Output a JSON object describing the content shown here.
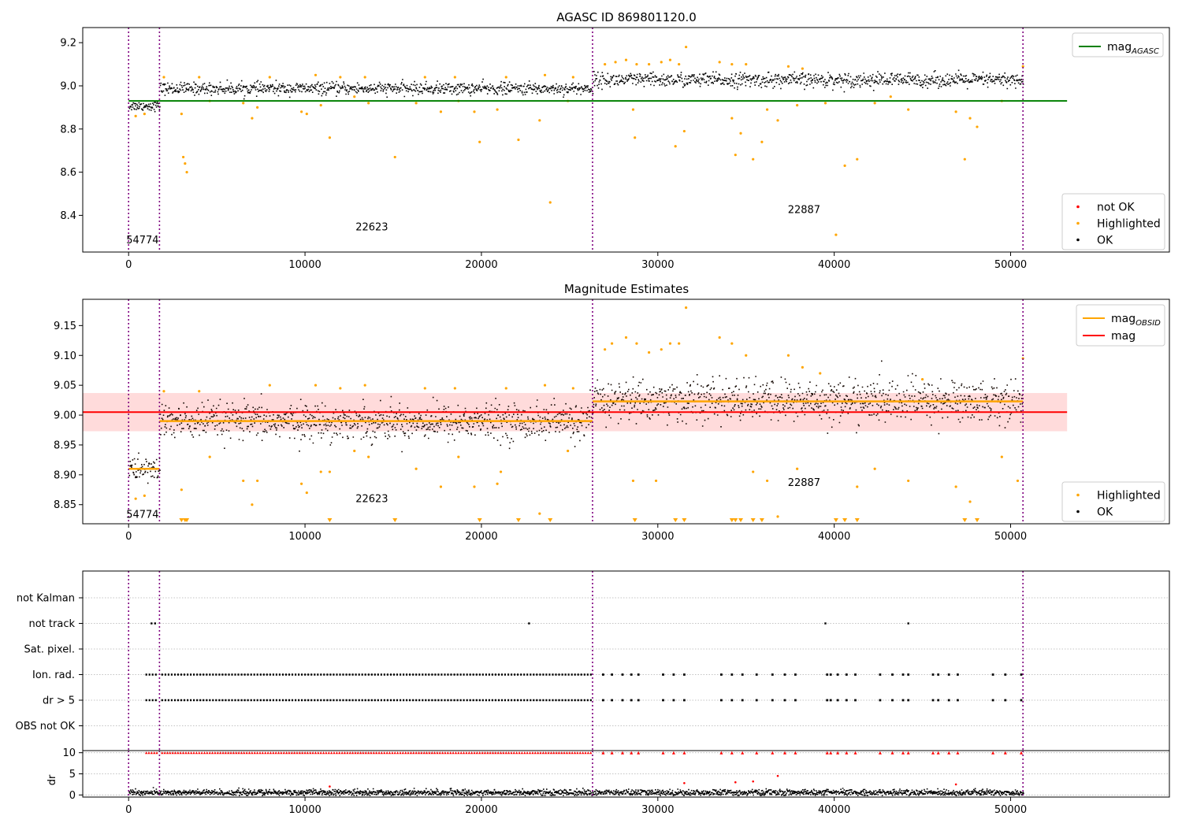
{
  "figure": {
    "title_top": "AGASC ID 869801120.0",
    "title_mid": "Magnitude Estimates"
  },
  "chart_data": [
    {
      "id": "top",
      "type": "scatter",
      "title": "AGASC ID 869801120.0",
      "xlim": [
        -2600,
        59000
      ],
      "ylim": [
        8.23,
        9.27
      ],
      "xticks": [
        0,
        10000,
        20000,
        30000,
        40000,
        50000
      ],
      "yticks": [
        8.4,
        8.6,
        8.8,
        9.0,
        9.2
      ],
      "ytick_decimals": 1,
      "grid": false,
      "legend_upper": {
        "placement": "top-right",
        "entries": [
          {
            "label": "mag",
            "sub": "AGASC",
            "color": "#008000",
            "kind": "line"
          }
        ]
      },
      "legend_lower": {
        "placement": "bottom-right",
        "entries": [
          {
            "label": "not OK",
            "color": "#ff0000",
            "kind": "dot"
          },
          {
            "label": "Highlighted",
            "color": "#ffa500",
            "kind": "dot"
          },
          {
            "label": "OK",
            "color": "#000000",
            "kind": "dot"
          }
        ]
      },
      "hline": {
        "y": 8.93,
        "x0": 0,
        "x1": 53200,
        "color": "#008000"
      },
      "obsid_boundaries": [
        0,
        1750,
        26300,
        50700
      ],
      "segments": [
        {
          "x0": 0,
          "x1": 1750,
          "center": 8.91,
          "spread": 0.02
        },
        {
          "x0": 1750,
          "x1": 26300,
          "center": 8.99,
          "spread": 0.025
        },
        {
          "x0": 26300,
          "x1": 50700,
          "center": 9.03,
          "spread": 0.03
        }
      ],
      "highlighted": [
        [
          400,
          8.86
        ],
        [
          900,
          8.87
        ],
        [
          3000,
          8.87
        ],
        [
          3100,
          8.67
        ],
        [
          3200,
          8.64
        ],
        [
          3300,
          8.6
        ],
        [
          4600,
          8.93
        ],
        [
          6500,
          8.92
        ],
        [
          7000,
          8.85
        ],
        [
          7300,
          8.9
        ],
        [
          9800,
          8.88
        ],
        [
          10100,
          8.87
        ],
        [
          10900,
          8.91
        ],
        [
          11400,
          8.76
        ],
        [
          12800,
          8.95
        ],
        [
          13600,
          8.92
        ],
        [
          15100,
          8.67
        ],
        [
          16300,
          8.92
        ],
        [
          17700,
          8.88
        ],
        [
          18700,
          8.93
        ],
        [
          19600,
          8.88
        ],
        [
          19900,
          8.74
        ],
        [
          20900,
          8.89
        ],
        [
          22100,
          8.75
        ],
        [
          23300,
          8.84
        ],
        [
          23900,
          8.46
        ],
        [
          24900,
          8.93
        ],
        [
          28600,
          8.89
        ],
        [
          28700,
          8.76
        ],
        [
          31000,
          8.72
        ],
        [
          31500,
          8.79
        ],
        [
          31600,
          9.18
        ],
        [
          34200,
          8.85
        ],
        [
          34400,
          8.68
        ],
        [
          34700,
          8.78
        ],
        [
          35400,
          8.66
        ],
        [
          35900,
          8.74
        ],
        [
          36200,
          8.89
        ],
        [
          36800,
          8.84
        ],
        [
          37900,
          8.91
        ],
        [
          39500,
          8.92
        ],
        [
          40100,
          8.31
        ],
        [
          40600,
          8.63
        ],
        [
          41300,
          8.66
        ],
        [
          42300,
          8.92
        ],
        [
          43200,
          8.95
        ],
        [
          44200,
          8.89
        ],
        [
          46900,
          8.88
        ],
        [
          47400,
          8.66
        ],
        [
          47700,
          8.85
        ],
        [
          48100,
          8.81
        ],
        [
          49500,
          8.93
        ],
        [
          50700,
          9.09
        ],
        [
          27000,
          9.1
        ],
        [
          27600,
          9.11
        ],
        [
          28200,
          9.12
        ],
        [
          28800,
          9.1
        ],
        [
          29500,
          9.1
        ],
        [
          30200,
          9.11
        ],
        [
          30700,
          9.12
        ],
        [
          31200,
          9.1
        ],
        [
          33500,
          9.11
        ],
        [
          34200,
          9.1
        ],
        [
          35000,
          9.1
        ],
        [
          37400,
          9.09
        ],
        [
          38200,
          9.08
        ],
        [
          2000,
          9.04
        ],
        [
          4000,
          9.04
        ],
        [
          8000,
          9.04
        ],
        [
          10600,
          9.05
        ],
        [
          12000,
          9.04
        ],
        [
          13400,
          9.04
        ],
        [
          16800,
          9.04
        ],
        [
          18500,
          9.04
        ],
        [
          21400,
          9.04
        ],
        [
          23600,
          9.05
        ],
        [
          25200,
          9.04
        ]
      ],
      "annotations": [
        {
          "text": "54774",
          "x": 0,
          "y": 8.27
        },
        {
          "text": "22623",
          "x": 13000,
          "y": 8.33
        },
        {
          "text": "22887",
          "x": 37500,
          "y": 8.41
        }
      ]
    },
    {
      "id": "mid",
      "type": "scatter",
      "title": "Magnitude Estimates",
      "xlim": [
        -2600,
        59000
      ],
      "ylim": [
        8.818,
        9.194
      ],
      "xticks": [
        0,
        10000,
        20000,
        30000,
        40000,
        50000
      ],
      "yticks": [
        8.85,
        8.9,
        8.95,
        9.0,
        9.05,
        9.1,
        9.15
      ],
      "ytick_decimals": 2,
      "grid": false,
      "legend_upper": {
        "placement": "top-right",
        "entries": [
          {
            "label": "mag",
            "sub": "OBSID",
            "color": "#ffa500",
            "kind": "line"
          },
          {
            "label": "mag",
            "sub": "",
            "color": "#ff0000",
            "kind": "line"
          }
        ]
      },
      "legend_lower": {
        "placement": "bottom-right",
        "entries": [
          {
            "label": "Highlighted",
            "color": "#ffa500",
            "kind": "dot"
          },
          {
            "label": "OK",
            "color": "#000000",
            "kind": "dot"
          }
        ]
      },
      "band": {
        "y0": 8.973,
        "y1": 9.037,
        "x0": -2600,
        "x1": 53200,
        "color": "#ffcccc"
      },
      "hline": {
        "y": 9.005,
        "x0": -2600,
        "x1": 53200,
        "color": "#ff0000"
      },
      "obsid_means": [
        {
          "x0": 0,
          "x1": 1750,
          "y": 8.91
        },
        {
          "x0": 1750,
          "x1": 26300,
          "y": 8.99
        },
        {
          "x0": 26300,
          "x1": 50700,
          "y": 9.023
        }
      ],
      "obsid_boundaries": [
        0,
        1750,
        26300,
        50700
      ],
      "segments": [
        {
          "x0": 0,
          "x1": 1750,
          "center": 8.91,
          "spread": 0.02
        },
        {
          "x0": 1750,
          "x1": 26300,
          "center": 8.99,
          "spread": 0.027
        },
        {
          "x0": 26300,
          "x1": 50700,
          "center": 9.025,
          "spread": 0.032
        }
      ],
      "highlighted": [
        [
          400,
          8.86
        ],
        [
          900,
          8.865
        ],
        [
          3000,
          8.875
        ],
        [
          4600,
          8.93
        ],
        [
          6500,
          8.89
        ],
        [
          7000,
          8.85
        ],
        [
          7300,
          8.89
        ],
        [
          9800,
          8.885
        ],
        [
          10100,
          8.87
        ],
        [
          10900,
          8.905
        ],
        [
          11400,
          8.905
        ],
        [
          12800,
          8.94
        ],
        [
          13600,
          8.93
        ],
        [
          16300,
          8.91
        ],
        [
          17700,
          8.88
        ],
        [
          18700,
          8.93
        ],
        [
          19600,
          8.88
        ],
        [
          20900,
          8.885
        ],
        [
          21100,
          8.905
        ],
        [
          23300,
          8.835
        ],
        [
          24900,
          8.94
        ],
        [
          28600,
          8.89
        ],
        [
          29900,
          8.89
        ],
        [
          35400,
          8.905
        ],
        [
          36200,
          8.89
        ],
        [
          36800,
          8.83
        ],
        [
          37900,
          8.91
        ],
        [
          41300,
          8.88
        ],
        [
          42300,
          8.91
        ],
        [
          44200,
          8.89
        ],
        [
          46900,
          8.88
        ],
        [
          47700,
          8.855
        ],
        [
          49500,
          8.93
        ],
        [
          50400,
          8.89
        ],
        [
          27000,
          9.11
        ],
        [
          27400,
          9.12
        ],
        [
          28200,
          9.13
        ],
        [
          28800,
          9.12
        ],
        [
          29500,
          9.105
        ],
        [
          30200,
          9.11
        ],
        [
          30700,
          9.12
        ],
        [
          31200,
          9.12
        ],
        [
          31600,
          9.18
        ],
        [
          33500,
          9.13
        ],
        [
          34200,
          9.12
        ],
        [
          35000,
          9.1
        ],
        [
          37400,
          9.1
        ],
        [
          38200,
          9.08
        ],
        [
          39200,
          9.07
        ],
        [
          45000,
          9.06
        ],
        [
          2000,
          9.04
        ],
        [
          4000,
          9.04
        ],
        [
          8000,
          9.05
        ],
        [
          10600,
          9.05
        ],
        [
          12000,
          9.045
        ],
        [
          13400,
          9.05
        ],
        [
          16800,
          9.045
        ],
        [
          18500,
          9.045
        ],
        [
          21400,
          9.045
        ],
        [
          23600,
          9.05
        ],
        [
          25200,
          9.045
        ],
        [
          50700,
          9.095
        ]
      ],
      "offscale_low": [
        3000,
        3200,
        3300,
        11400,
        15100,
        19900,
        22100,
        23900,
        28700,
        31000,
        31500,
        34200,
        34400,
        34700,
        35400,
        35900,
        40100,
        40600,
        41300,
        47400,
        48100
      ],
      "annotations": [
        {
          "text": "54774",
          "x": 0,
          "y": 8.828
        },
        {
          "text": "22623",
          "x": 13000,
          "y": 8.854
        },
        {
          "text": "22887",
          "x": 37500,
          "y": 8.881
        }
      ]
    },
    {
      "id": "flags",
      "type": "scatter",
      "xlim": [
        -2600,
        59000
      ],
      "grid": true,
      "obsid_boundaries": [
        0,
        1750,
        26300,
        50700
      ],
      "categories": [
        "not Kalman",
        "not track",
        "Sat. pixel.",
        "Ion. rad.",
        "dr > 5",
        "OBS not OK"
      ],
      "not_track_x": [
        1300,
        1500,
        22700,
        39500,
        44200
      ],
      "ion_rad_x_ranges": [
        [
          1000,
          1600
        ],
        [
          1900,
          26300
        ]
      ],
      "ion_rad_sparse_x": [
        26900,
        27400,
        28000,
        28500,
        28900,
        30300,
        30900,
        31500,
        33600,
        34200,
        34800,
        35600,
        36500,
        37200,
        37800,
        39600,
        39800,
        40200,
        40700,
        41200,
        42600,
        43300,
        43900,
        44200,
        45600,
        45900,
        46500,
        47000,
        49000,
        49700,
        50600
      ],
      "dr_over_5_x_ranges": [
        [
          1000,
          1600
        ],
        [
          1900,
          26300
        ]
      ],
      "dr_over_5_sparse_x": [
        26900,
        27400,
        28000,
        28500,
        28900,
        30300,
        30900,
        31500,
        33600,
        34200,
        34800,
        35600,
        36500,
        37200,
        37800,
        39600,
        39800,
        40200,
        40700,
        41200,
        42600,
        43300,
        43900,
        44200,
        45600,
        45900,
        46500,
        47000,
        49000,
        49700,
        50600
      ]
    },
    {
      "id": "dr",
      "type": "scatter",
      "ylabel": "dr",
      "xlim": [
        -2600,
        59000
      ],
      "ylim": [
        -0.5,
        10.5
      ],
      "xticks": [
        0,
        10000,
        20000,
        30000,
        40000,
        50000
      ],
      "yticks": [
        0,
        5,
        10
      ],
      "grid": true,
      "obsid_boundaries": [
        0,
        1750,
        26300,
        50700
      ],
      "baseline": {
        "x0": 0,
        "x1": 50700,
        "center": 0.7,
        "spread": 0.6
      },
      "capped_value": 10,
      "capped_outliers": [
        [
          31500,
          2.8
        ],
        [
          34400,
          3.0
        ],
        [
          35400,
          3.2
        ],
        [
          36800,
          4.5
        ],
        [
          46900,
          2.5
        ],
        [
          11400,
          2.0
        ]
      ]
    }
  ]
}
